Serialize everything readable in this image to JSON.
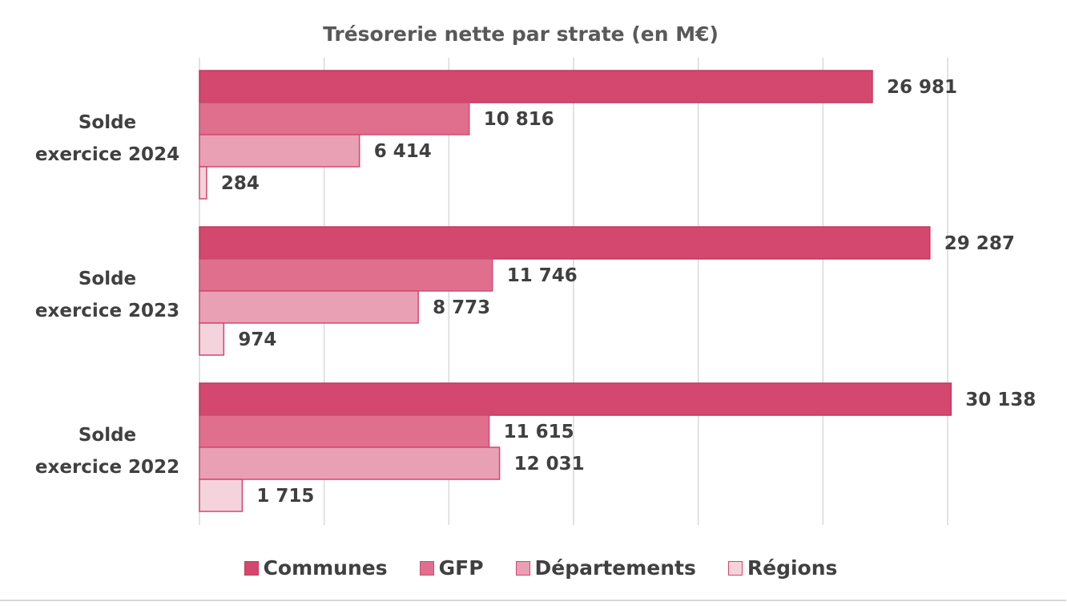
{
  "chart_data": {
    "type": "bar",
    "orientation": "horizontal",
    "title": "Trésorerie nette par strate (en M€)",
    "categories": [
      [
        "Solde",
        "exercice 2024"
      ],
      [
        "Solde",
        "exercice 2023"
      ],
      [
        "Solde",
        "exercice 2022"
      ]
    ],
    "series": [
      {
        "name": "Communes",
        "color": "#d4476e",
        "values": [
          26981,
          29287,
          30138
        ],
        "labels": [
          "26 981",
          "29 287",
          "30 138"
        ]
      },
      {
        "name": "GFP",
        "color": "#e06f8e",
        "values": [
          10816,
          11746,
          11615
        ],
        "labels": [
          "10 816",
          "11 746",
          "11 615"
        ]
      },
      {
        "name": "Départements",
        "color": "#eaa0b4",
        "values": [
          6414,
          8773,
          12031
        ],
        "labels": [
          "6 414",
          "8 773",
          "12 031"
        ]
      },
      {
        "name": "Régions",
        "color": "#f4d3dc",
        "values": [
          284,
          974,
          1715
        ],
        "labels": [
          "284",
          "974",
          "1 715"
        ]
      }
    ],
    "xlim": [
      0,
      30000
    ],
    "grid": true,
    "legend_position": "bottom"
  },
  "legend": {
    "communes": "Communes",
    "gfp": "GFP",
    "departements": "Départements",
    "regions": "Régions"
  }
}
